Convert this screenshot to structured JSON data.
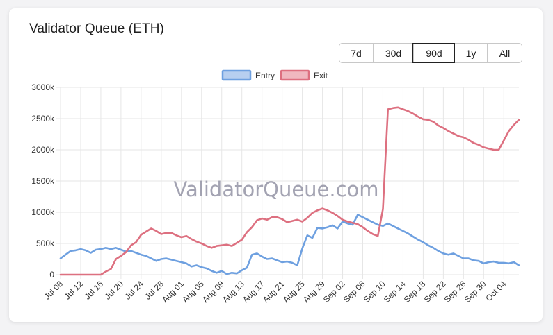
{
  "title": "Validator Queue (ETH)",
  "ranges": {
    "options": [
      "7d",
      "30d",
      "90d",
      "1y",
      "All"
    ],
    "selected": "90d"
  },
  "watermark": "ValidatorQueue.com",
  "colors": {
    "entry": "#6ea0e0",
    "exit": "#dd7080",
    "grid": "#e6e6e6"
  },
  "chart_data": {
    "type": "line",
    "ylim": [
      0,
      3000000
    ],
    "yticks": [
      "0",
      "500k",
      "1000k",
      "1500k",
      "2000k",
      "2500k",
      "3000k"
    ],
    "xticks": [
      "Jul 08",
      "Jul 12",
      "Jul 16",
      "Jul 20",
      "Jul 24",
      "Jul 28",
      "Aug 01",
      "Aug 05",
      "Aug 09",
      "Aug 13",
      "Aug 17",
      "Aug 21",
      "Aug 25",
      "Aug 29",
      "Sep 02",
      "Sep 06",
      "Sep 10",
      "Sep 14",
      "Sep 18",
      "Sep 22",
      "Sep 26",
      "Sep 30",
      "Oct 04"
    ],
    "grid": true,
    "legend_position": "top",
    "series": [
      {
        "name": "Entry",
        "points": [
          [
            0,
            260000
          ],
          [
            1,
            320000
          ],
          [
            2,
            380000
          ],
          [
            3,
            390000
          ],
          [
            4,
            410000
          ],
          [
            5,
            390000
          ],
          [
            6,
            350000
          ],
          [
            7,
            400000
          ],
          [
            8,
            410000
          ],
          [
            9,
            430000
          ],
          [
            10,
            410000
          ],
          [
            11,
            430000
          ],
          [
            12,
            400000
          ],
          [
            13,
            370000
          ],
          [
            14,
            380000
          ],
          [
            15,
            350000
          ],
          [
            16,
            320000
          ],
          [
            17,
            300000
          ],
          [
            18,
            260000
          ],
          [
            19,
            220000
          ],
          [
            20,
            250000
          ],
          [
            21,
            260000
          ],
          [
            22,
            240000
          ],
          [
            23,
            220000
          ],
          [
            24,
            200000
          ],
          [
            25,
            180000
          ],
          [
            26,
            130000
          ],
          [
            27,
            150000
          ],
          [
            28,
            120000
          ],
          [
            29,
            100000
          ],
          [
            30,
            60000
          ],
          [
            31,
            30000
          ],
          [
            32,
            60000
          ],
          [
            33,
            10000
          ],
          [
            34,
            30000
          ],
          [
            35,
            20000
          ],
          [
            36,
            70000
          ],
          [
            37,
            110000
          ],
          [
            38,
            320000
          ],
          [
            39,
            340000
          ],
          [
            40,
            290000
          ],
          [
            41,
            250000
          ],
          [
            42,
            260000
          ],
          [
            43,
            230000
          ],
          [
            44,
            200000
          ],
          [
            45,
            210000
          ],
          [
            46,
            190000
          ],
          [
            47,
            150000
          ],
          [
            48,
            420000
          ],
          [
            49,
            630000
          ],
          [
            50,
            590000
          ],
          [
            51,
            750000
          ],
          [
            52,
            740000
          ],
          [
            53,
            760000
          ],
          [
            54,
            790000
          ],
          [
            55,
            740000
          ],
          [
            56,
            850000
          ],
          [
            57,
            820000
          ],
          [
            58,
            800000
          ],
          [
            59,
            960000
          ],
          [
            60,
            920000
          ],
          [
            61,
            880000
          ],
          [
            62,
            840000
          ],
          [
            63,
            800000
          ],
          [
            64,
            780000
          ],
          [
            65,
            820000
          ],
          [
            66,
            780000
          ],
          [
            67,
            740000
          ],
          [
            68,
            700000
          ],
          [
            69,
            660000
          ],
          [
            70,
            610000
          ],
          [
            71,
            560000
          ],
          [
            72,
            520000
          ],
          [
            73,
            470000
          ],
          [
            74,
            430000
          ],
          [
            75,
            380000
          ],
          [
            76,
            340000
          ],
          [
            77,
            320000
          ],
          [
            78,
            340000
          ],
          [
            79,
            300000
          ],
          [
            80,
            260000
          ],
          [
            81,
            260000
          ],
          [
            82,
            230000
          ],
          [
            83,
            220000
          ],
          [
            84,
            180000
          ],
          [
            85,
            200000
          ],
          [
            86,
            210000
          ],
          [
            87,
            190000
          ],
          [
            88,
            190000
          ],
          [
            89,
            180000
          ],
          [
            90,
            200000
          ],
          [
            91,
            150000
          ]
        ]
      },
      {
        "name": "Exit",
        "points": [
          [
            0,
            0
          ],
          [
            1,
            0
          ],
          [
            2,
            0
          ],
          [
            3,
            0
          ],
          [
            4,
            0
          ],
          [
            5,
            0
          ],
          [
            6,
            0
          ],
          [
            7,
            0
          ],
          [
            8,
            0
          ],
          [
            9,
            50000
          ],
          [
            10,
            90000
          ],
          [
            11,
            250000
          ],
          [
            12,
            300000
          ],
          [
            13,
            360000
          ],
          [
            14,
            470000
          ],
          [
            15,
            520000
          ],
          [
            16,
            640000
          ],
          [
            17,
            690000
          ],
          [
            18,
            740000
          ],
          [
            19,
            700000
          ],
          [
            20,
            650000
          ],
          [
            21,
            670000
          ],
          [
            22,
            670000
          ],
          [
            23,
            630000
          ],
          [
            24,
            600000
          ],
          [
            25,
            620000
          ],
          [
            26,
            570000
          ],
          [
            27,
            530000
          ],
          [
            28,
            500000
          ],
          [
            29,
            460000
          ],
          [
            30,
            430000
          ],
          [
            31,
            460000
          ],
          [
            32,
            470000
          ],
          [
            33,
            480000
          ],
          [
            34,
            460000
          ],
          [
            35,
            510000
          ],
          [
            36,
            560000
          ],
          [
            37,
            680000
          ],
          [
            38,
            760000
          ],
          [
            39,
            870000
          ],
          [
            40,
            900000
          ],
          [
            41,
            880000
          ],
          [
            42,
            920000
          ],
          [
            43,
            920000
          ],
          [
            44,
            890000
          ],
          [
            45,
            840000
          ],
          [
            46,
            860000
          ],
          [
            47,
            880000
          ],
          [
            48,
            850000
          ],
          [
            49,
            910000
          ],
          [
            50,
            990000
          ],
          [
            51,
            1030000
          ],
          [
            52,
            1060000
          ],
          [
            53,
            1030000
          ],
          [
            54,
            990000
          ],
          [
            55,
            940000
          ],
          [
            56,
            880000
          ],
          [
            57,
            850000
          ],
          [
            58,
            830000
          ],
          [
            59,
            810000
          ],
          [
            60,
            760000
          ],
          [
            61,
            700000
          ],
          [
            62,
            650000
          ],
          [
            63,
            620000
          ],
          [
            64,
            1050000
          ],
          [
            65,
            2650000
          ],
          [
            66,
            2670000
          ],
          [
            67,
            2680000
          ],
          [
            68,
            2650000
          ],
          [
            69,
            2620000
          ],
          [
            70,
            2580000
          ],
          [
            71,
            2530000
          ],
          [
            72,
            2490000
          ],
          [
            73,
            2480000
          ],
          [
            74,
            2450000
          ],
          [
            75,
            2390000
          ],
          [
            76,
            2350000
          ],
          [
            77,
            2300000
          ],
          [
            78,
            2260000
          ],
          [
            79,
            2220000
          ],
          [
            80,
            2200000
          ],
          [
            81,
            2160000
          ],
          [
            82,
            2110000
          ],
          [
            83,
            2080000
          ],
          [
            84,
            2040000
          ],
          [
            85,
            2020000
          ],
          [
            86,
            2000000
          ],
          [
            87,
            2000000
          ],
          [
            88,
            2150000
          ],
          [
            89,
            2300000
          ],
          [
            90,
            2400000
          ],
          [
            91,
            2480000
          ]
        ]
      }
    ]
  }
}
